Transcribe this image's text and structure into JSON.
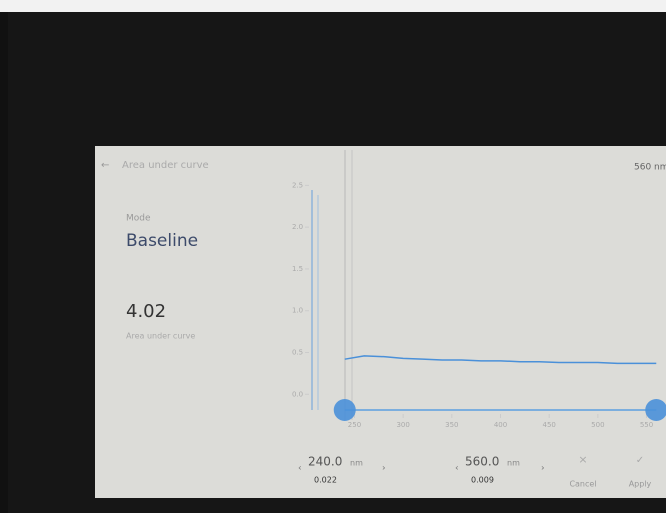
{
  "header": {
    "title": "Area under curve",
    "wavelength": "560 nm"
  },
  "mode": {
    "label": "Mode",
    "value": "Baseline"
  },
  "result": {
    "value": "4.02",
    "label": "Area under curve"
  },
  "chart": {
    "type": "line",
    "color": "#4a90d9",
    "x": [
      240,
      260,
      280,
      300,
      320,
      340,
      360,
      380,
      400,
      420,
      440,
      460,
      480,
      500,
      520,
      540,
      560
    ],
    "values": [
      0.42,
      0.46,
      0.45,
      0.43,
      0.42,
      0.41,
      0.41,
      0.4,
      0.4,
      0.39,
      0.39,
      0.38,
      0.38,
      0.38,
      0.37,
      0.37,
      0.37
    ],
    "xlim": [
      230,
      570
    ],
    "ylim": [
      -0.2,
      2.6
    ],
    "xticks": [
      250,
      300,
      350,
      400,
      450,
      500,
      550
    ],
    "yticks": [
      {
        "value": 0,
        "label": "0.0"
      },
      0.5,
      {
        "value": 1,
        "label": "1.0"
      },
      1.5,
      {
        "value": 2,
        "label": "2.0"
      },
      2.5
    ]
  },
  "cursors": [
    {
      "wavelength": {
        "value": 240,
        "label": "240.0"
      },
      "unit": "nm",
      "absorbance": "0.022"
    },
    {
      "wavelength": {
        "value": 560,
        "label": "560.0"
      },
      "unit": "nm",
      "absorbance": "0.009"
    }
  ],
  "buttons": {
    "cancel": "Cancel",
    "apply": "Apply"
  }
}
